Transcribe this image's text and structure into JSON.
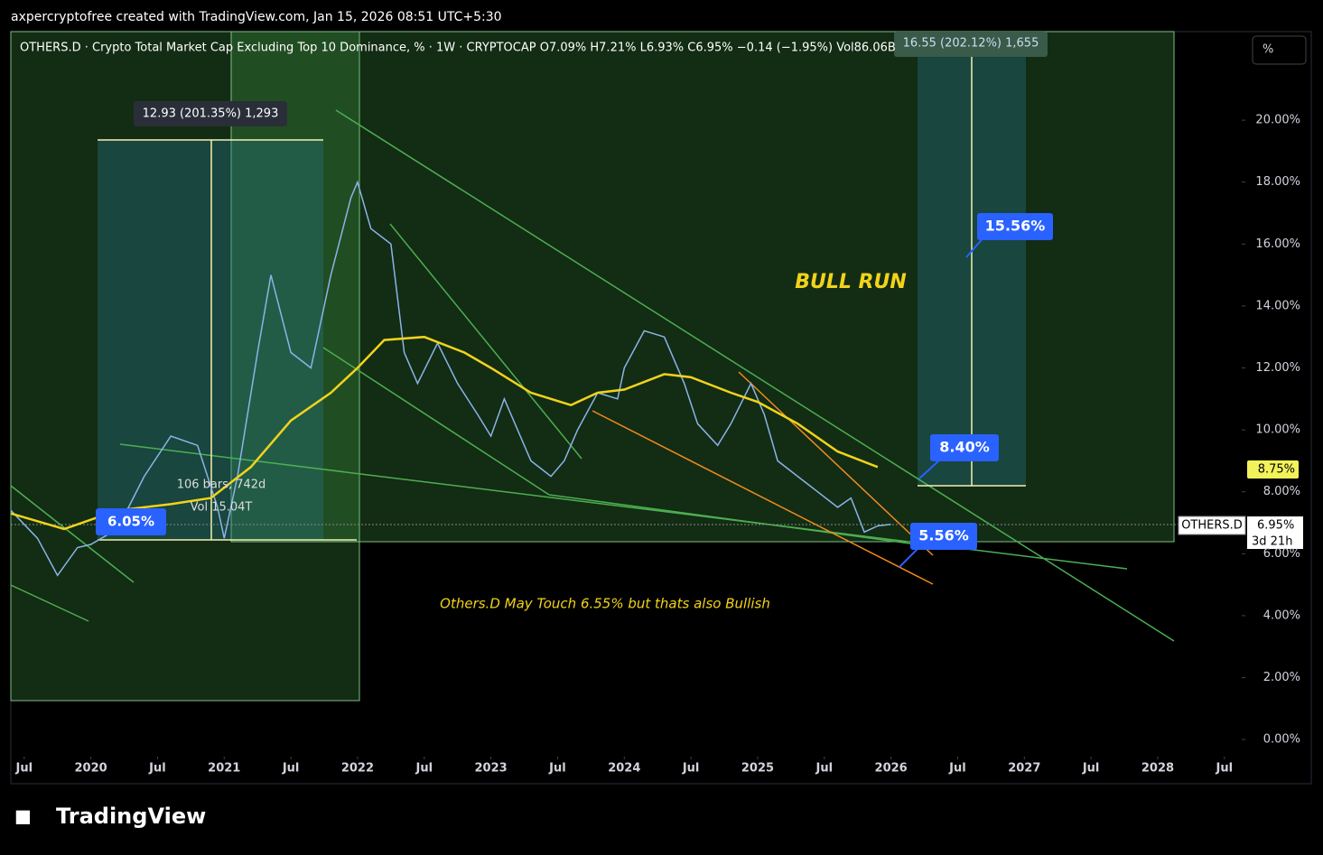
{
  "header": "axpercryptofree created with TradingView.com, Jan 15, 2026 08:51 UTC+5:30",
  "legend_line": "OTHERS.D · Crypto Total Market Cap Excluding Top 10 Dominance, % · 1W · CRYPTOCAP  O7.09%  H7.21%  L6.93%  C6.95%  −0.14 (−1.95%)  Vol86.06B",
  "scale_button": "%",
  "logo": "TradingView",
  "chart_data": {
    "type": "line",
    "xlim": [
      2019.4,
      2028.63
    ],
    "xticks": [
      {
        "value": 2019.5,
        "label": "Jul"
      },
      2020,
      {
        "value": 2020.5,
        "label": "Jul"
      },
      2021,
      {
        "value": 2021.5,
        "label": "Jul"
      },
      2022,
      {
        "value": 2022.5,
        "label": "Jul"
      },
      2023,
      {
        "value": 2023.5,
        "label": "Jul"
      },
      2024,
      {
        "value": 2024.5,
        "label": "Jul"
      },
      2025,
      {
        "value": 2025.5,
        "label": "Jul"
      },
      2026,
      {
        "value": 2026.5,
        "label": "Jul"
      },
      2027,
      {
        "value": 2027.5,
        "label": "Jul"
      },
      2028,
      {
        "value": 2028.5,
        "label": "Jul"
      }
    ],
    "ylim": [
      -0.55,
      22.86
    ],
    "yticks": [
      {
        "value": 0,
        "label": "0.00%"
      },
      {
        "value": 2,
        "label": "2.00%"
      },
      {
        "value": 4,
        "label": "4.00%"
      },
      {
        "value": 6,
        "label": "6.00%"
      },
      {
        "value": 8,
        "label": "8.00%"
      },
      {
        "value": 10,
        "label": "10.00%"
      },
      {
        "value": 12,
        "label": "12.00%"
      },
      {
        "value": 14,
        "label": "14.00%"
      },
      {
        "value": 16,
        "label": "16.00%"
      },
      {
        "value": 18,
        "label": "18.00%"
      },
      {
        "value": 20,
        "label": "20.00%"
      }
    ],
    "series": [
      {
        "name": "OTHERS.D",
        "color": "#8ab4e8",
        "x": [
          2019.4,
          2019.6,
          2019.75,
          2019.9,
          2020.0,
          2020.2,
          2020.4,
          2020.6,
          2020.8,
          2020.95,
          2021.0,
          2021.1,
          2021.25,
          2021.35,
          2021.5,
          2021.65,
          2021.8,
          2021.95,
          2022.0,
          2022.1,
          2022.25,
          2022.35,
          2022.45,
          2022.6,
          2022.75,
          2022.9,
          2023.0,
          2023.1,
          2023.3,
          2023.45,
          2023.55,
          2023.65,
          2023.8,
          2023.95,
          2024.0,
          2024.15,
          2024.3,
          2024.45,
          2024.55,
          2024.7,
          2024.8,
          2024.95,
          2025.05,
          2025.15,
          2025.3,
          2025.45,
          2025.6,
          2025.7,
          2025.8,
          2025.9,
          2026.0
        ],
        "values": [
          7.4,
          6.5,
          5.3,
          6.2,
          6.3,
          6.8,
          8.5,
          9.8,
          9.5,
          7.5,
          6.5,
          8.5,
          12.5,
          15.0,
          12.5,
          12.0,
          15.0,
          17.5,
          18.0,
          16.5,
          16.0,
          12.5,
          11.5,
          12.8,
          11.5,
          10.5,
          9.8,
          11.0,
          9.0,
          8.5,
          9.0,
          10.0,
          11.2,
          11.0,
          12.0,
          13.2,
          13.0,
          11.5,
          10.2,
          9.5,
          10.2,
          11.5,
          10.5,
          9.0,
          8.5,
          8.0,
          7.5,
          7.8,
          6.7,
          6.9,
          6.95
        ]
      },
      {
        "name": "MA",
        "color": "#f2d31b",
        "x": [
          2019.4,
          2019.8,
          2020.2,
          2020.6,
          2020.9,
          2021.2,
          2021.5,
          2021.8,
          2022.0,
          2022.2,
          2022.5,
          2022.8,
          2023.0,
          2023.3,
          2023.6,
          2023.8,
          2024.0,
          2024.3,
          2024.5,
          2024.8,
          2025.0,
          2025.3,
          2025.6,
          2025.9
        ],
        "values": [
          7.3,
          6.8,
          7.4,
          7.6,
          7.8,
          8.8,
          10.3,
          11.2,
          12.0,
          12.9,
          13.0,
          12.5,
          12.0,
          11.2,
          10.8,
          11.2,
          11.3,
          11.8,
          11.7,
          11.2,
          10.9,
          10.2,
          9.3,
          8.8
        ]
      }
    ],
    "annotations": {
      "left_range": "12.93 (201.35%) 1,293",
      "left_bars": "106 bars, 742d",
      "left_vol": "Vol 15.04T",
      "left_label": "6.05%",
      "right_range": "16.55 (202.12%) 1,655",
      "bull_run": "BULL RUN",
      "target": "15.56%",
      "entry": "8.40%",
      "stop": "5.56%",
      "note": "Others.D May Touch 6.55% but thats also Bullish",
      "ma_price": "8.75%",
      "symbol": "OTHERS.D",
      "last_price": "6.95%",
      "countdown": "3d 21h"
    }
  }
}
